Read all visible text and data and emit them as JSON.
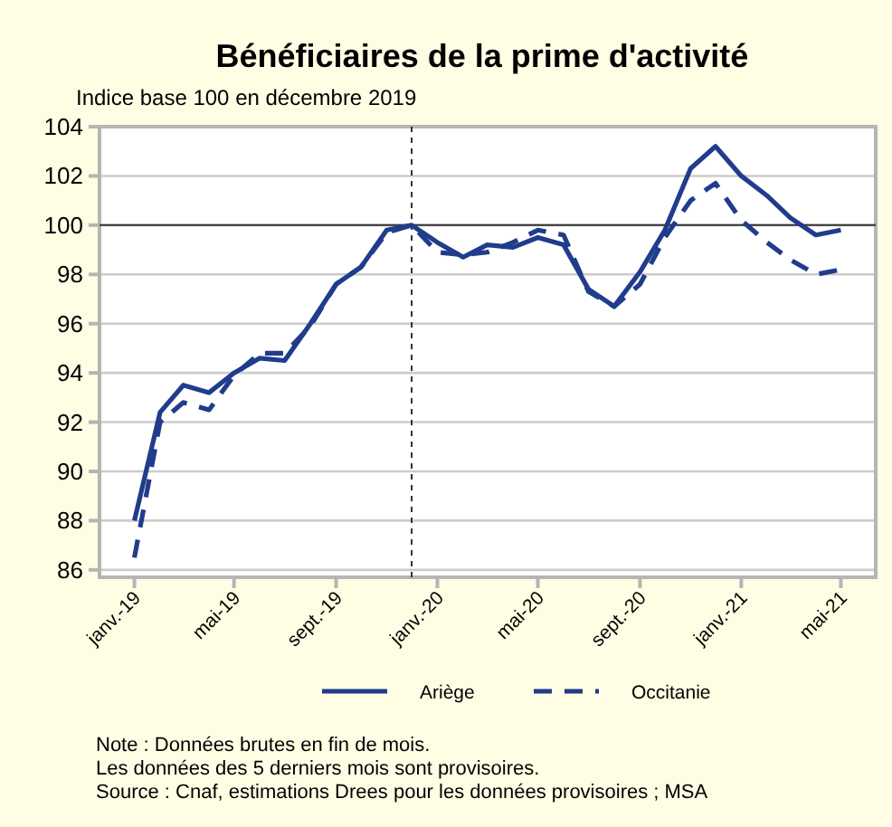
{
  "chart_data": {
    "type": "line",
    "title": "Bénéficiaires de la prime d'activité",
    "subtitle": "Indice base 100 en décembre 2019",
    "x": [
      "2019-01",
      "2019-02",
      "2019-03",
      "2019-04",
      "2019-05",
      "2019-06",
      "2019-07",
      "2019-08",
      "2019-09",
      "2019-10",
      "2019-11",
      "2019-12",
      "2020-01",
      "2020-02",
      "2020-03",
      "2020-04",
      "2020-05",
      "2020-06",
      "2020-07",
      "2020-08",
      "2020-09",
      "2020-10",
      "2020-11",
      "2020-12",
      "2021-01",
      "2021-02",
      "2021-03",
      "2021-04",
      "2021-05"
    ],
    "series": [
      {
        "name": "Ariège",
        "color": "#203c8c",
        "line_style": "solid",
        "values": [
          88.0,
          92.4,
          93.5,
          93.2,
          94.0,
          94.6,
          94.5,
          96.0,
          97.6,
          98.3,
          99.8,
          100.0,
          99.3,
          98.7,
          99.2,
          99.1,
          99.5,
          99.2,
          97.4,
          96.7,
          98.1,
          99.8,
          102.3,
          103.2,
          102.0,
          101.2,
          100.3,
          99.6,
          99.8
        ]
      },
      {
        "name": "Occitanie",
        "color": "#203c8c",
        "line_style": "dashed",
        "values": [
          86.5,
          92.0,
          92.8,
          92.5,
          93.9,
          94.8,
          94.8,
          95.9,
          97.6,
          98.3,
          99.7,
          100.0,
          98.9,
          98.8,
          98.9,
          99.3,
          99.8,
          99.6,
          97.3,
          96.7,
          97.6,
          99.5,
          101.0,
          101.7,
          100.2,
          99.3,
          98.6,
          98.0,
          98.2
        ]
      }
    ],
    "xlim": [
      "2018-11-20",
      "2021-06-12"
    ],
    "xticks": [
      {
        "value": "2019-01",
        "label": "janv.-19"
      },
      {
        "value": "2019-05",
        "label": "mai-19"
      },
      {
        "value": "2019-09",
        "label": "sept.-19"
      },
      {
        "value": "2020-01",
        "label": "janv.-20"
      },
      {
        "value": "2020-05",
        "label": "mai-20"
      },
      {
        "value": "2020-09",
        "label": "sept.-20"
      },
      {
        "value": "2021-01",
        "label": "janv.-21"
      },
      {
        "value": "2021-05",
        "label": "mai-21"
      }
    ],
    "ylim": [
      85.7,
      104
    ],
    "yticks": [
      86,
      88,
      90,
      92,
      94,
      96,
      98,
      100,
      102,
      104
    ],
    "ref_lines": [
      {
        "axis": "y",
        "value": 100,
        "color": "#333333",
        "line_style": "solid"
      },
      {
        "axis": "x",
        "value": "2019-12",
        "color": "#333333",
        "line_style": "dashed"
      }
    ],
    "grid": "y",
    "legend": "bottom",
    "marker": "none",
    "annotations": [
      "Note : Données brutes en fin de mois.",
      "Les données des 5 derniers mois sont provisoires.",
      "Source : Cnaf, estimations Drees pour les données provisoires ; MSA"
    ]
  }
}
